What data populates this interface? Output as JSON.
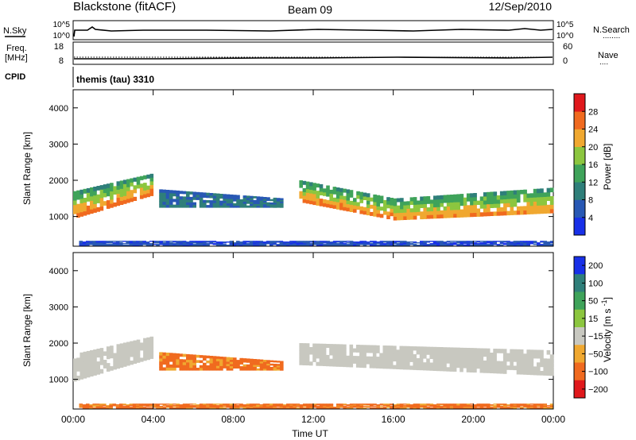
{
  "header": {
    "station": "Blackstone (fitACF)",
    "beam": "Beam 09",
    "date": "12/Sep/2010"
  },
  "top_panels": {
    "nsky_label": "N.Sky",
    "nsearch_label": "N.Search",
    "nsearch_legend": "........",
    "noise_ticks": [
      "10^5",
      "10^0"
    ],
    "freq_label_1": "Freq.",
    "freq_label_2": "[MHz]",
    "freq_ticks": [
      "18",
      "8"
    ],
    "nave_label": "Nave",
    "nave_legend": "....",
    "nave_ticks": [
      "60",
      "0"
    ],
    "cpid_label": "CPID",
    "cpid_text": "themis (tau) 3310"
  },
  "chart_data": [
    {
      "type": "heatmap",
      "title": "",
      "xlabel": "",
      "ylabel": "Slant Range [km]",
      "xlim_hours": [
        0,
        24
      ],
      "ylim": [
        180,
        4500
      ],
      "y_ticks": [
        1000,
        2000,
        3000,
        4000
      ],
      "grid": false,
      "colorbar": {
        "label": "Power [dB]",
        "ticks": [
          4,
          8,
          12,
          16,
          20,
          24,
          28
        ],
        "range": [
          0,
          32
        ],
        "colors": [
          "#1830e8",
          "#2858b4",
          "#2f7f7a",
          "#3fa35a",
          "#8cc63f",
          "#f0a830",
          "#f06a1f",
          "#e0181c"
        ]
      },
      "bands": [
        {
          "t_start": 0.0,
          "t_end": 4.0,
          "range_bottom_start": 950,
          "range_bottom_end": 1600,
          "range_top_start": 1700,
          "range_top_end": 2200,
          "power_bottom": 26,
          "power_top": 12
        },
        {
          "t_start": 4.3,
          "t_end": 10.5,
          "range_bottom_start": 1250,
          "range_bottom_end": 1250,
          "range_top_start": 1750,
          "range_top_end": 1500,
          "power_bottom": 9,
          "power_top": 7
        },
        {
          "t_start": 11.3,
          "t_end": 16.0,
          "range_bottom_start": 1400,
          "range_bottom_end": 900,
          "range_top_start": 2000,
          "range_top_end": 1500,
          "power_bottom": 25,
          "power_top": 12
        },
        {
          "t_start": 16.0,
          "t_end": 24.0,
          "range_bottom_start": 900,
          "range_bottom_end": 1100,
          "range_top_start": 1500,
          "range_top_end": 1800,
          "power_bottom": 24,
          "power_top": 12
        },
        {
          "t_start": 0.3,
          "t_end": 24.0,
          "range_bottom_start": 200,
          "range_bottom_end": 200,
          "range_top_start": 330,
          "range_top_end": 330,
          "power_bottom": 5,
          "power_top": 4
        }
      ]
    },
    {
      "type": "heatmap",
      "title": "",
      "xlabel": "Time UT",
      "ylabel": "Slant Range [km]",
      "xlim_hours": [
        0,
        24
      ],
      "x_ticks": [
        "00:00",
        "04:00",
        "08:00",
        "12:00",
        "16:00",
        "20:00",
        "00:00"
      ],
      "ylim": [
        180,
        4500
      ],
      "y_ticks": [
        1000,
        2000,
        3000,
        4000
      ],
      "grid": false,
      "colorbar": {
        "label": "Velocity [m s^-1]",
        "ticks": [
          "200",
          "100",
          "50",
          "15",
          "-15",
          "-50",
          "-100",
          "-200"
        ],
        "colors": [
          "#1830e8",
          "#2f7f7a",
          "#3fa35a",
          "#8cc63f",
          "#c8c8c0",
          "#f0a830",
          "#f06a1f",
          "#e0181c"
        ]
      },
      "bands": [
        {
          "t_start": 0.0,
          "t_end": 4.0,
          "range_bottom_start": 950,
          "range_bottom_end": 1600,
          "range_top_start": 1700,
          "range_top_end": 2200,
          "velocity": 0
        },
        {
          "t_start": 4.3,
          "t_end": 10.5,
          "range_bottom_start": 1250,
          "range_bottom_end": 1250,
          "range_top_start": 1750,
          "range_top_end": 1500,
          "velocity": -40
        },
        {
          "t_start": 11.3,
          "t_end": 24.0,
          "range_bottom_start": 1400,
          "range_bottom_end": 1100,
          "range_top_start": 2000,
          "range_top_end": 1800,
          "velocity": 0
        },
        {
          "t_start": 0.3,
          "t_end": 24.0,
          "range_bottom_start": 200,
          "range_bottom_end": 200,
          "range_top_start": 330,
          "range_top_end": 330,
          "velocity": -40
        }
      ]
    }
  ]
}
